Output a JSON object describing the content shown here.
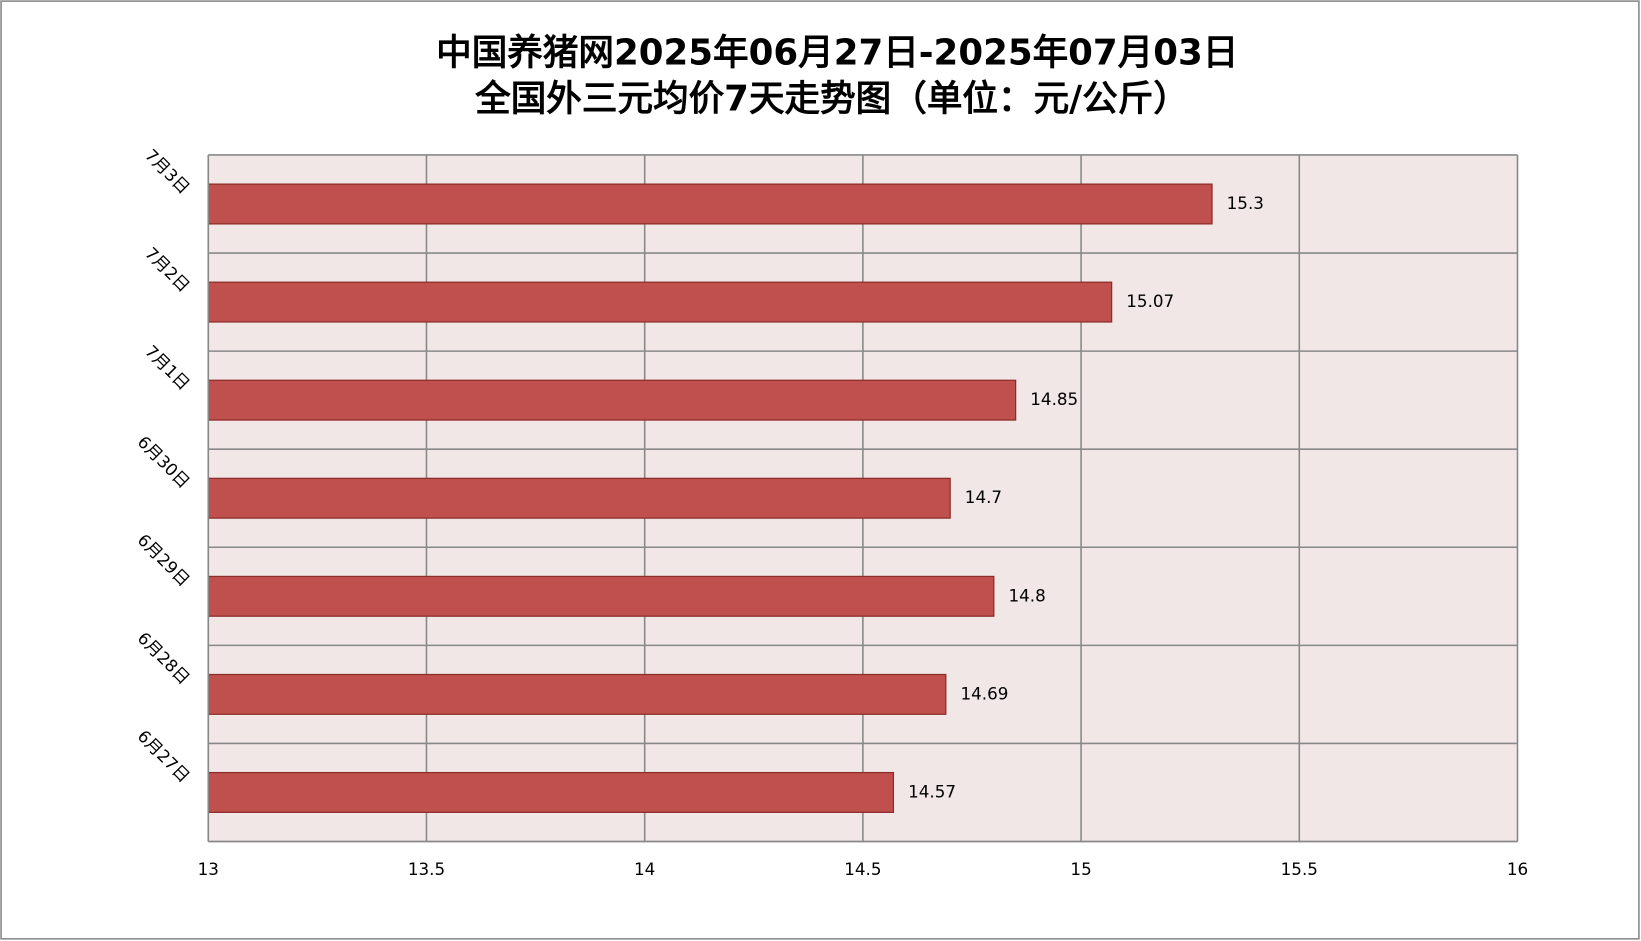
{
  "chart_data": {
    "type": "bar",
    "orientation": "horizontal",
    "title": [
      "中国养猪网2025年06月27日-2025年07月03日",
      "全国外三元均价7天走势图（单位：元/公斤）"
    ],
    "categories": [
      "6月27日",
      "6月28日",
      "6月29日",
      "6月30日",
      "7月1日",
      "7月2日",
      "7月3日"
    ],
    "values": [
      14.57,
      14.69,
      14.8,
      14.7,
      14.85,
      15.07,
      15.3
    ],
    "color": "#c0504d",
    "xlim": [
      13,
      16
    ],
    "xticks": [
      13,
      13.5,
      14,
      14.5,
      15,
      15.5,
      16
    ],
    "grid": true
  }
}
